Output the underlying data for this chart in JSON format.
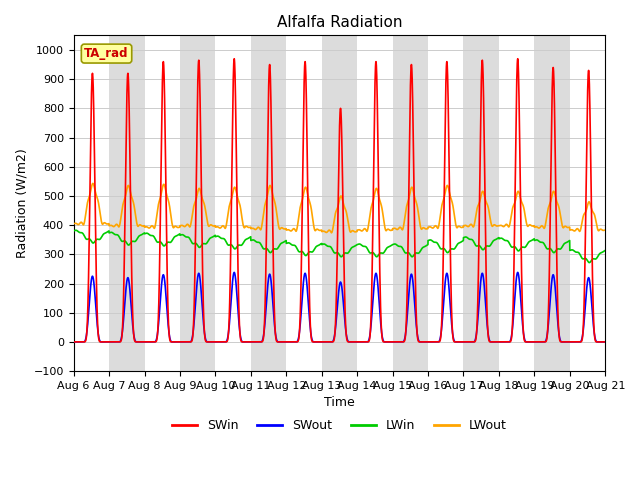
{
  "title": "Alfalfa Radiation",
  "xlabel": "Time",
  "ylabel": "Radiation (W/m2)",
  "ylim": [
    -100,
    1050
  ],
  "yticks": [
    -100,
    0,
    100,
    200,
    300,
    400,
    500,
    600,
    700,
    800,
    900,
    1000
  ],
  "annotation_text": "TA_rad",
  "annotation_bbox_facecolor": "#FFFFA0",
  "annotation_bbox_edgecolor": "#999900",
  "line_colors": {
    "SWin": "#FF0000",
    "SWout": "#0000FF",
    "LWin": "#00CC00",
    "LWout": "#FFA500"
  },
  "legend_labels": [
    "SWin",
    "SWout",
    "LWin",
    "LWout"
  ],
  "background_white": "#FFFFFF",
  "background_gray": "#DCDCDC",
  "grid_color": "#CCCCCC",
  "start_day": 6,
  "n_days": 15,
  "points_per_day": 288,
  "SWin_peaks": [
    920,
    920,
    960,
    965,
    970,
    950,
    960,
    800,
    960,
    950,
    960,
    965,
    970,
    940,
    930
  ],
  "SWout_peaks": [
    225,
    220,
    230,
    235,
    238,
    232,
    235,
    205,
    235,
    232,
    235,
    235,
    238,
    230,
    220
  ],
  "LWin_base_vals": [
    385,
    378,
    375,
    370,
    365,
    352,
    342,
    338,
    338,
    338,
    352,
    362,
    358,
    352,
    318
  ],
  "LWout_base_vals": [
    405,
    398,
    393,
    398,
    393,
    388,
    383,
    378,
    383,
    388,
    393,
    398,
    398,
    393,
    383
  ],
  "LWout_peaks": [
    535,
    528,
    532,
    518,
    522,
    528,
    522,
    492,
    518,
    522,
    528,
    508,
    508,
    508,
    472
  ],
  "title_fontsize": 11,
  "axis_label_fontsize": 9,
  "tick_fontsize": 8,
  "legend_fontsize": 9
}
